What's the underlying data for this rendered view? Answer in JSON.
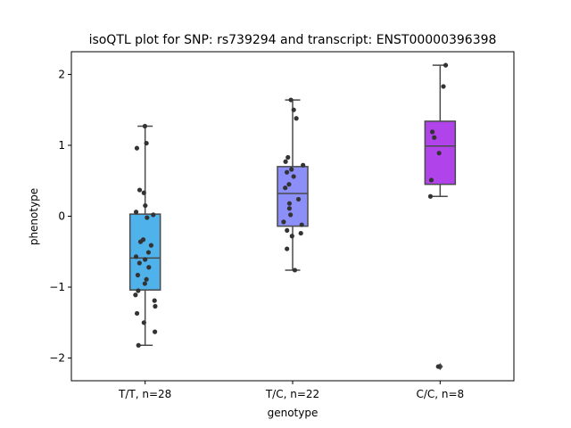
{
  "chart_data": {
    "type": "box",
    "title": "isoQTL plot for SNP: rs739294 and transcript: ENST00000396398",
    "xlabel": "genotype",
    "ylabel": "phenotype",
    "ylim": [
      -2.32,
      2.32
    ],
    "yticks": [
      -2,
      -1,
      0,
      1,
      2
    ],
    "grid": false,
    "legend": "none",
    "colors": {
      "points": "#333333",
      "box_edge": "#4a4a4a"
    },
    "groups": [
      {
        "label": "T/T, n=28",
        "color": "#4fb2ea",
        "box": {
          "whisker_low": -1.82,
          "q1": -1.04,
          "median": -0.59,
          "q3": 0.03,
          "whisker_high": 1.27
        },
        "outliers": [],
        "points": [
          1.27,
          1.03,
          0.96,
          0.37,
          0.33,
          0.15,
          0.06,
          0.02,
          -0.02,
          -0.33,
          -0.36,
          -0.41,
          -0.51,
          -0.57,
          -0.61,
          -0.66,
          -0.72,
          -0.83,
          -0.89,
          -0.95,
          -1.05,
          -1.11,
          -1.19,
          -1.27,
          -1.37,
          -1.5,
          -1.63,
          -1.82
        ]
      },
      {
        "label": "T/C, n=22",
        "color": "#8d8ff8",
        "box": {
          "whisker_low": -0.76,
          "q1": -0.14,
          "median": 0.32,
          "q3": 0.7,
          "whisker_high": 1.64
        },
        "outliers": [],
        "points": [
          1.64,
          1.5,
          1.38,
          0.83,
          0.77,
          0.72,
          0.66,
          0.62,
          0.56,
          0.45,
          0.4,
          0.24,
          0.18,
          0.11,
          -0.08,
          -0.12,
          -0.2,
          -0.24,
          -0.28,
          -0.46,
          -0.76,
          0.02
        ]
      },
      {
        "label": "C/C, n=8",
        "color": "#b143ea",
        "box": {
          "whisker_low": 0.28,
          "q1": 0.45,
          "median": 0.99,
          "q3": 1.34,
          "whisker_high": 2.13
        },
        "outliers": [
          -2.12
        ],
        "points": [
          2.13,
          1.83,
          1.19,
          1.11,
          0.89,
          0.51,
          0.28,
          -2.12
        ]
      }
    ]
  }
}
